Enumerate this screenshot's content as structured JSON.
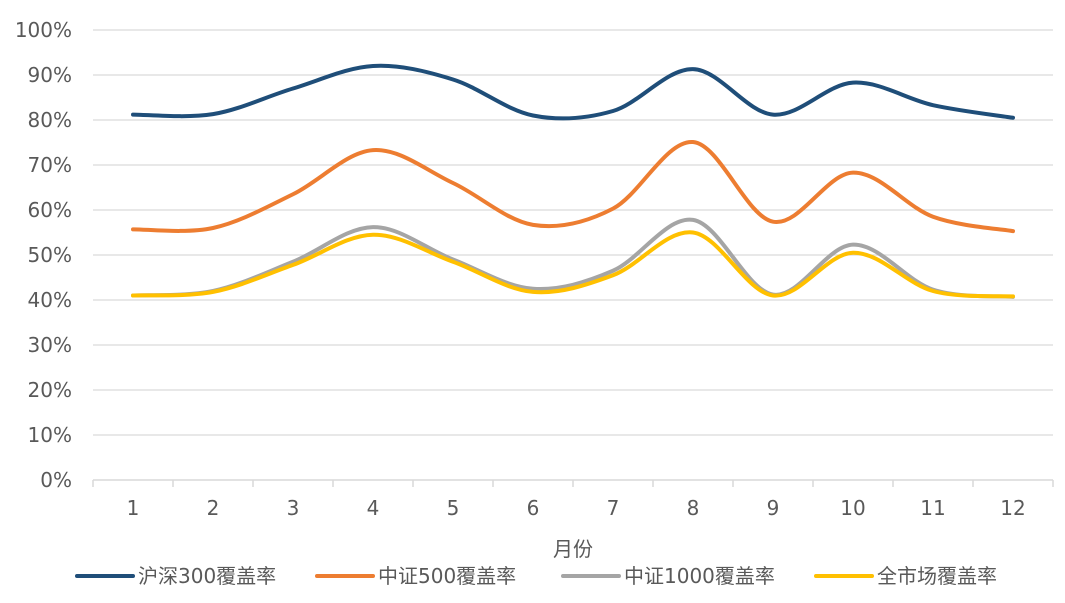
{
  "chart_data": {
    "type": "line",
    "title": "",
    "xlabel": "月份",
    "ylabel": "",
    "categories": [
      "1",
      "2",
      "3",
      "4",
      "5",
      "6",
      "7",
      "8",
      "9",
      "10",
      "11",
      "12"
    ],
    "y_unit": "%",
    "ylim": [
      0,
      100
    ],
    "y_ticks": [
      0,
      10,
      20,
      30,
      40,
      50,
      60,
      70,
      80,
      90,
      100
    ],
    "y_tick_labels": [
      "0%",
      "10%",
      "20%",
      "30%",
      "40%",
      "50%",
      "60%",
      "70%",
      "80%",
      "90%",
      "100%"
    ],
    "grid": true,
    "smooth": true,
    "legend_position": "bottom",
    "series": [
      {
        "name": "沪深300覆盖率",
        "color": "#1f4e79",
        "values": [
          81.2,
          81.3,
          87.0,
          92.0,
          89.0,
          81.0,
          82.0,
          91.3,
          81.2,
          88.3,
          83.3,
          80.5
        ]
      },
      {
        "name": "中证500覆盖率",
        "color": "#ed7d31",
        "values": [
          55.7,
          56.0,
          63.5,
          73.3,
          66.0,
          56.7,
          60.3,
          75.1,
          57.4,
          68.3,
          58.5,
          55.3
        ]
      },
      {
        "name": "中证1000覆盖率",
        "color": "#a5a5a5",
        "values": [
          41.0,
          42.0,
          48.5,
          56.2,
          49.0,
          42.5,
          46.5,
          57.8,
          41.2,
          52.3,
          42.3,
          40.7
        ]
      },
      {
        "name": "全市场覆盖率",
        "color": "#ffc000",
        "values": [
          41.0,
          41.8,
          47.8,
          54.5,
          48.5,
          41.8,
          45.5,
          55.0,
          41.0,
          50.5,
          42.0,
          40.8
        ]
      }
    ]
  }
}
